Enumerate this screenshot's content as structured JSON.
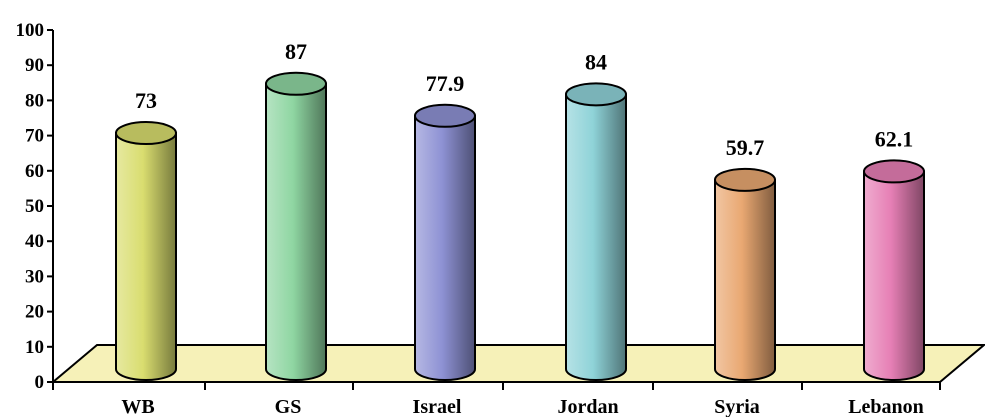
{
  "chart_data": {
    "type": "bar",
    "style": "3d-cylinder",
    "categories": [
      "WB",
      "GS",
      "Israel",
      "Jordan",
      "Syria",
      "Lebanon"
    ],
    "values": [
      73,
      87,
      77.9,
      84,
      59.7,
      62.1
    ],
    "value_labels": [
      "73",
      "87",
      "77.9",
      "84",
      "59.7",
      "62.1"
    ],
    "ylim": [
      0,
      100
    ],
    "yticks": [
      0,
      10,
      20,
      30,
      40,
      50,
      60,
      70,
      80,
      90,
      100
    ],
    "title": "",
    "xlabel": "",
    "ylabel": "",
    "grid": false,
    "legend": "none",
    "floor_color": "#f6f1b8",
    "colors": [
      "#d9dd6f",
      "#8fd6a2",
      "#8e92d4",
      "#8fd3d8",
      "#e9a872",
      "#e67fb5"
    ]
  }
}
